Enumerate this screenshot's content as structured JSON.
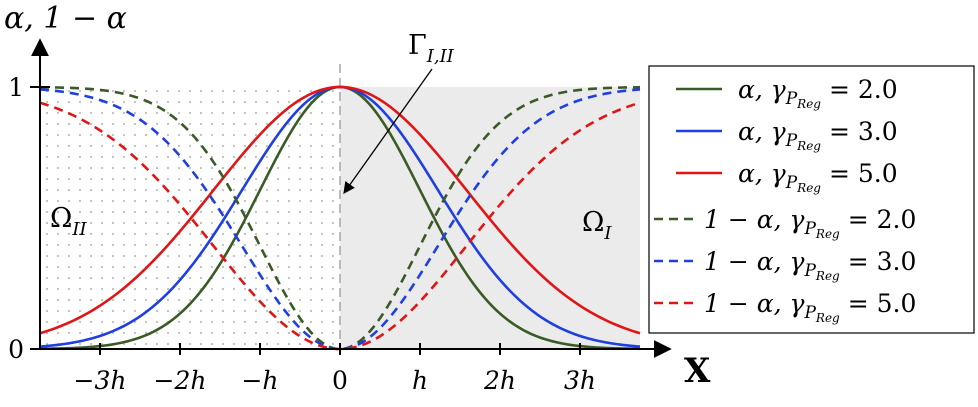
{
  "chart_data": {
    "type": "line",
    "ylabel": "α, 1 − α",
    "xlabel": "X",
    "xlim": [
      -3.75,
      3.75
    ],
    "ylim": [
      0,
      1
    ],
    "x_ticks": [
      {
        "v": -3,
        "label": "−3h"
      },
      {
        "v": -2,
        "label": "−2h"
      },
      {
        "v": -1,
        "label": "−h"
      },
      {
        "v": 0,
        "label": "0"
      },
      {
        "v": 1,
        "label": "h"
      },
      {
        "v": 2,
        "label": "2h"
      },
      {
        "v": 3,
        "label": "3h"
      }
    ],
    "y_ticks": [
      {
        "v": 0,
        "label": "0"
      },
      {
        "v": 1,
        "label": "1"
      }
    ],
    "series": [
      {
        "name": "α, γ_PReg = 2.0",
        "name_main": "α, γ",
        "name_tail": " = 2.0",
        "kind": "alpha",
        "gamma": 2.0,
        "color": "#3a5a26",
        "dashed": false
      },
      {
        "name": "α, γ_PReg = 3.0",
        "name_main": "α, γ",
        "name_tail": " = 3.0",
        "kind": "alpha",
        "gamma": 3.0,
        "color": "#1f3fe0",
        "dashed": false
      },
      {
        "name": "α, γ_PReg = 5.0",
        "name_main": "α, γ",
        "name_tail": " = 5.0",
        "kind": "alpha",
        "gamma": 5.0,
        "color": "#e01515",
        "dashed": false
      },
      {
        "name": "1 − α, γ_PReg = 2.0",
        "name_main": "1 − α, γ",
        "name_tail": " = 2.0",
        "kind": "one_minus_alpha",
        "gamma": 2.0,
        "color": "#3a5a26",
        "dashed": true
      },
      {
        "name": "1 − α, γ_PReg = 3.0",
        "name_main": "1 − α, γ",
        "name_tail": " = 3.0",
        "kind": "one_minus_alpha",
        "gamma": 3.0,
        "color": "#1f3fe0",
        "dashed": true
      },
      {
        "name": "1 − α, γ_PReg = 5.0",
        "name_main": "1 − α, γ",
        "name_tail": " = 5.0",
        "kind": "one_minus_alpha",
        "gamma": 5.0,
        "color": "#e01515",
        "dashed": true
      }
    ],
    "subscript": {
      "p": "P",
      "reg": "Reg"
    },
    "regions": {
      "left": {
        "label": "Ω",
        "sub": "II",
        "fill": "dotted",
        "x_range": [
          -3.75,
          0
        ]
      },
      "right": {
        "label": "Ω",
        "sub": "I",
        "fill": "#ebebeb",
        "x_range": [
          0,
          3.75
        ]
      }
    },
    "interface": {
      "label": "Γ",
      "sub": "I,II",
      "x": 0
    },
    "legend_placement": "right",
    "grid": false
  }
}
